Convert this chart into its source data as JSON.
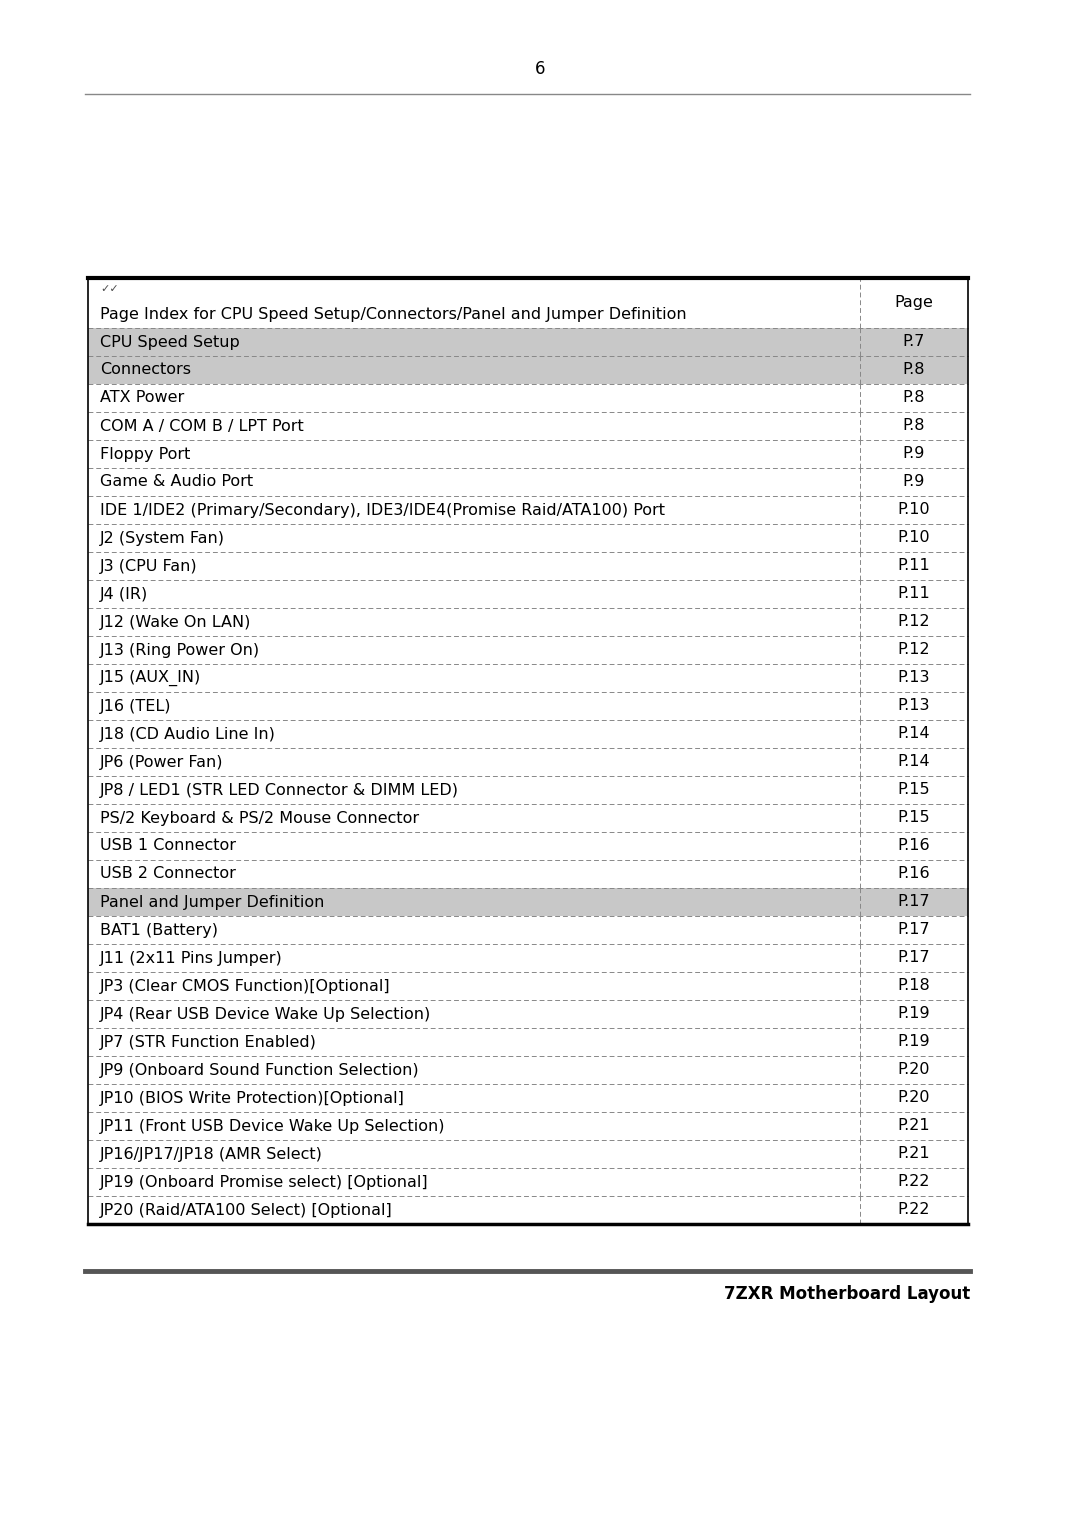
{
  "title": "7ZXR Motherboard Layout",
  "page_number": "6",
  "table_rows": [
    {
      "label": "Page Index for CPU Speed Setup/Connectors/Panel and Jumper Definition",
      "page": "Page",
      "highlight": false,
      "is_header": true
    },
    {
      "label": "CPU Speed Setup",
      "page": "P.7",
      "highlight": true,
      "is_header": false
    },
    {
      "label": "Connectors",
      "page": "P.8",
      "highlight": true,
      "is_header": false
    },
    {
      "label": "ATX Power",
      "page": "P.8",
      "highlight": false,
      "is_header": false
    },
    {
      "label": "COM A / COM B / LPT Port",
      "page": "P.8",
      "highlight": false,
      "is_header": false
    },
    {
      "label": "Floppy Port",
      "page": "P.9",
      "highlight": false,
      "is_header": false
    },
    {
      "label": "Game & Audio Port",
      "page": "P.9",
      "highlight": false,
      "is_header": false
    },
    {
      "label": "IDE 1/IDE2 (Primary/Secondary), IDE3/IDE4(Promise Raid/ATA100) Port",
      "page": "P.10",
      "highlight": false,
      "is_header": false
    },
    {
      "label": "J2 (System Fan)",
      "page": "P.10",
      "highlight": false,
      "is_header": false
    },
    {
      "label": "J3 (CPU Fan)",
      "page": "P.11",
      "highlight": false,
      "is_header": false
    },
    {
      "label": "J4 (IR)",
      "page": "P.11",
      "highlight": false,
      "is_header": false
    },
    {
      "label": "J12 (Wake On LAN)",
      "page": "P.12",
      "highlight": false,
      "is_header": false
    },
    {
      "label": "J13 (Ring Power On)",
      "page": "P.12",
      "highlight": false,
      "is_header": false
    },
    {
      "label": "J15 (AUX_IN)",
      "page": "P.13",
      "highlight": false,
      "is_header": false
    },
    {
      "label": "J16 (TEL)",
      "page": "P.13",
      "highlight": false,
      "is_header": false
    },
    {
      "label": "J18 (CD Audio Line In)",
      "page": "P.14",
      "highlight": false,
      "is_header": false
    },
    {
      "label": "JP6 (Power Fan)",
      "page": "P.14",
      "highlight": false,
      "is_header": false
    },
    {
      "label": "JP8 / LED1 (STR LED Connector & DIMM LED)",
      "page": "P.15",
      "highlight": false,
      "is_header": false
    },
    {
      "label": "PS/2 Keyboard & PS/2 Mouse Connector",
      "page": "P.15",
      "highlight": false,
      "is_header": false
    },
    {
      "label": "USB 1 Connector",
      "page": "P.16",
      "highlight": false,
      "is_header": false
    },
    {
      "label": "USB 2 Connector",
      "page": "P.16",
      "highlight": false,
      "is_header": false
    },
    {
      "label": "Panel and Jumper Definition",
      "page": "P.17",
      "highlight": true,
      "is_header": false
    },
    {
      "label": "BAT1 (Battery)",
      "page": "P.17",
      "highlight": false,
      "is_header": false
    },
    {
      "label": "J11 (2x11 Pins Jumper)",
      "page": "P.17",
      "highlight": false,
      "is_header": false
    },
    {
      "label": "JP3 (Clear CMOS Function)[Optional]",
      "page": "P.18",
      "highlight": false,
      "is_header": false
    },
    {
      "label": "JP4 (Rear USB Device Wake Up Selection)",
      "page": "P.19",
      "highlight": false,
      "is_header": false
    },
    {
      "label": "JP7 (STR Function Enabled)",
      "page": "P.19",
      "highlight": false,
      "is_header": false
    },
    {
      "label": "JP9 (Onboard Sound Function Selection)",
      "page": "P.20",
      "highlight": false,
      "is_header": false
    },
    {
      "label": "JP10 (BIOS Write Protection)[Optional]",
      "page": "P.20",
      "highlight": false,
      "is_header": false
    },
    {
      "label": "JP11 (Front USB Device Wake Up Selection)",
      "page": "P.21",
      "highlight": false,
      "is_header": false
    },
    {
      "label": "JP16/JP17/JP18 (AMR Select)",
      "page": "P.21",
      "highlight": false,
      "is_header": false
    },
    {
      "label": "JP19 (Onboard Promise select) [Optional]",
      "page": "P.22",
      "highlight": false,
      "is_header": false
    },
    {
      "label": "JP20 (Raid/ATA100 Select) [Optional]",
      "page": "P.22",
      "highlight": false,
      "is_header": false
    }
  ],
  "bg_color": "#ffffff",
  "highlight_color": "#c8c8c8",
  "text_color": "#000000",
  "border_color": "#000000",
  "dotted_border_color": "#888888",
  "title_fontsize": 12,
  "table_fontsize": 11.5,
  "page_num_fontsize": 12
}
